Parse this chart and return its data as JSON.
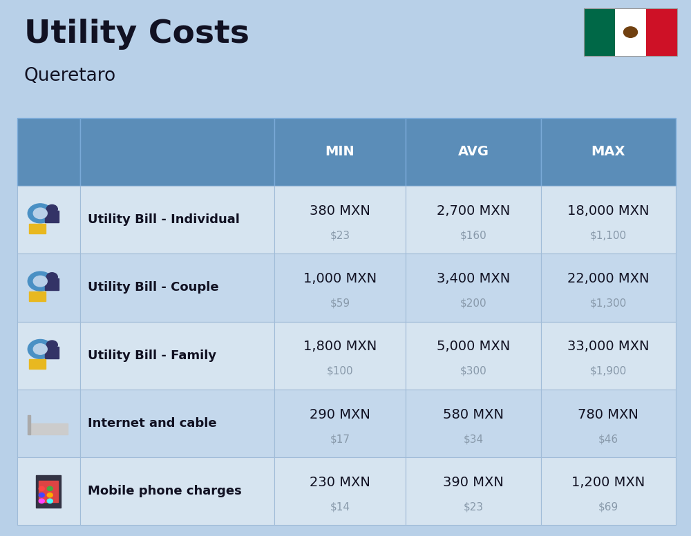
{
  "title": "Utility Costs",
  "subtitle": "Queretaro",
  "background_color": "#b8d0e8",
  "header_bg_color": "#5b8db8",
  "header_text_color": "#ffffff",
  "row_bg_color_1": "#d6e4f0",
  "row_bg_color_2": "#c4d8ec",
  "cell_border_color": "#a0bcd8",
  "col_headers": [
    "MIN",
    "AVG",
    "MAX"
  ],
  "rows": [
    {
      "label": "Utility Bill - Individual",
      "min_mxn": "380 MXN",
      "min_usd": "$23",
      "avg_mxn": "2,700 MXN",
      "avg_usd": "$160",
      "max_mxn": "18,000 MXN",
      "max_usd": "$1,100"
    },
    {
      "label": "Utility Bill - Couple",
      "min_mxn": "1,000 MXN",
      "min_usd": "$59",
      "avg_mxn": "3,400 MXN",
      "avg_usd": "$200",
      "max_mxn": "22,000 MXN",
      "max_usd": "$1,300"
    },
    {
      "label": "Utility Bill - Family",
      "min_mxn": "1,800 MXN",
      "min_usd": "$100",
      "avg_mxn": "5,000 MXN",
      "avg_usd": "$300",
      "max_mxn": "33,000 MXN",
      "max_usd": "$1,900"
    },
    {
      "label": "Internet and cable",
      "min_mxn": "290 MXN",
      "min_usd": "$17",
      "avg_mxn": "580 MXN",
      "avg_usd": "$34",
      "max_mxn": "780 MXN",
      "max_usd": "$46"
    },
    {
      "label": "Mobile phone charges",
      "min_mxn": "230 MXN",
      "min_usd": "$14",
      "avg_mxn": "390 MXN",
      "avg_usd": "$23",
      "max_mxn": "1,200 MXN",
      "max_usd": "$69"
    }
  ],
  "title_fontsize": 34,
  "subtitle_fontsize": 19,
  "header_fontsize": 14,
  "label_fontsize": 13,
  "value_fontsize": 14,
  "usd_fontsize": 11,
  "usd_color": "#8899aa",
  "label_color": "#111122",
  "value_color": "#111122",
  "flag_green": "#006847",
  "flag_white": "#ffffff",
  "flag_red": "#ce1126"
}
